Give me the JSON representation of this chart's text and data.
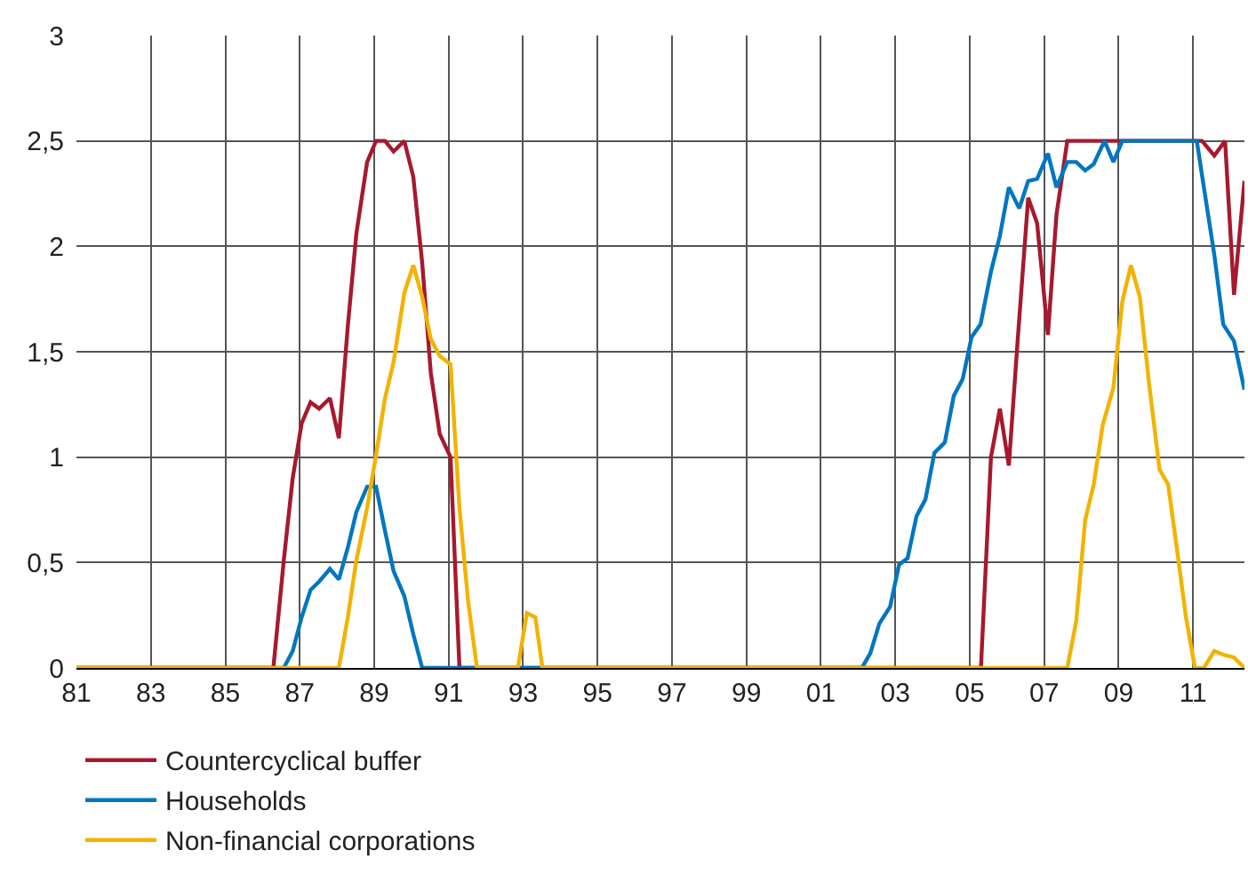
{
  "chart_data": {
    "type": "line",
    "xlim": [
      1981,
      2012.38
    ],
    "ylim": [
      0,
      3
    ],
    "xticks": [
      {
        "value": 1981,
        "label": "81"
      },
      {
        "value": 1983,
        "label": "83"
      },
      {
        "value": 1985,
        "label": "85"
      },
      {
        "value": 1987,
        "label": "87"
      },
      {
        "value": 1989,
        "label": "89"
      },
      {
        "value": 1991,
        "label": "91"
      },
      {
        "value": 1993,
        "label": "93"
      },
      {
        "value": 1995,
        "label": "95"
      },
      {
        "value": 1997,
        "label": "97"
      },
      {
        "value": 1999,
        "label": "99"
      },
      {
        "value": 2001,
        "label": "01"
      },
      {
        "value": 2003,
        "label": "03"
      },
      {
        "value": 2005,
        "label": "05"
      },
      {
        "value": 2007,
        "label": "07"
      },
      {
        "value": 2009,
        "label": "09"
      },
      {
        "value": 2011,
        "label": "11"
      }
    ],
    "yticks": [
      0,
      {
        "value": 0.5,
        "label": "0,5"
      },
      1,
      {
        "value": 1.5,
        "label": "1,5"
      },
      2,
      {
        "value": 2.5,
        "label": "2,5"
      },
      3
    ],
    "grid": true,
    "legend": "bottom",
    "marker": "none",
    "line_style": "solid",
    "series": [
      {
        "name": "Countercyclical buffer",
        "color": "#a6192e",
        "x": [
          1981,
          1986.29,
          1986.57,
          1986.81,
          1987.05,
          1987.29,
          1987.52,
          1987.81,
          1988.05,
          1988.29,
          1988.52,
          1988.81,
          1989.05,
          1989.29,
          1989.52,
          1989.81,
          1990.05,
          1990.29,
          1990.52,
          1990.76,
          1991.05,
          1991.29,
          2005.3,
          2005.57,
          2005.81,
          2006.05,
          2006.29,
          2006.57,
          2006.81,
          2007.1,
          2007.33,
          2007.62,
          2011.24,
          2011.57,
          2011.86,
          2012.1,
          2012.38
        ],
        "values": [
          0,
          0,
          0.51,
          0.9,
          1.16,
          1.26,
          1.23,
          1.28,
          1.09,
          1.62,
          2.06,
          2.4,
          2.5,
          2.5,
          2.45,
          2.5,
          2.33,
          1.92,
          1.4,
          1.11,
          1.0,
          0,
          0,
          1.0,
          1.23,
          0.96,
          1.56,
          2.23,
          2.11,
          1.58,
          2.15,
          2.5,
          2.5,
          2.43,
          2.5,
          1.77,
          2.31
        ]
      },
      {
        "name": "Households",
        "color": "#0077c0",
        "x": [
          1981,
          1986.57,
          1986.81,
          1987.05,
          1987.29,
          1987.52,
          1987.81,
          1988.05,
          1988.29,
          1988.52,
          1988.81,
          1989.05,
          1989.29,
          1989.52,
          1989.81,
          1990.05,
          1990.29,
          2002.1,
          2002.33,
          2002.57,
          2002.86,
          2003.1,
          2003.33,
          2003.57,
          2003.81,
          2004.05,
          2004.33,
          2004.57,
          2004.81,
          2005.05,
          2005.29,
          2005.57,
          2005.81,
          2006.05,
          2006.33,
          2006.57,
          2006.81,
          2007.1,
          2007.33,
          2007.62,
          2007.86,
          2008.1,
          2008.33,
          2008.62,
          2008.86,
          2009.1,
          2011.1,
          2011.29,
          2011.57,
          2011.81,
          2012.1,
          2012.38
        ],
        "values": [
          0,
          0,
          0.08,
          0.24,
          0.37,
          0.41,
          0.47,
          0.42,
          0.57,
          0.74,
          0.86,
          0.86,
          0.65,
          0.46,
          0.34,
          0.16,
          0,
          0,
          0.07,
          0.21,
          0.29,
          0.49,
          0.52,
          0.72,
          0.8,
          1.02,
          1.07,
          1.29,
          1.37,
          1.57,
          1.63,
          1.88,
          2.05,
          2.28,
          2.18,
          2.31,
          2.32,
          2.44,
          2.28,
          2.4,
          2.4,
          2.36,
          2.39,
          2.5,
          2.4,
          2.5,
          2.5,
          2.28,
          1.96,
          1.63,
          1.55,
          1.32
        ]
      },
      {
        "name": "Non-financial corporations",
        "color": "#f2b300",
        "x": [
          1981,
          1988.05,
          1988.29,
          1988.52,
          1988.81,
          1989.05,
          1989.29,
          1989.52,
          1989.81,
          1990.05,
          1990.29,
          1990.52,
          1990.76,
          1991.05,
          1991.29,
          1991.52,
          1991.76,
          1992.86,
          1993.1,
          1993.33,
          1993.52,
          2007.62,
          2007.86,
          2008.1,
          2008.33,
          2008.57,
          2008.86,
          2009.1,
          2009.33,
          2009.57,
          2009.81,
          2010.1,
          2010.33,
          2010.57,
          2010.81,
          2011.05,
          2011.29,
          2011.57,
          2011.86,
          2012.1,
          2012.38
        ],
        "values": [
          0,
          0,
          0.24,
          0.51,
          0.76,
          1.01,
          1.28,
          1.45,
          1.78,
          1.91,
          1.76,
          1.56,
          1.48,
          1.44,
          0.76,
          0.32,
          0,
          0,
          0.26,
          0.24,
          0,
          0,
          0.22,
          0.7,
          0.87,
          1.15,
          1.33,
          1.74,
          1.91,
          1.76,
          1.36,
          0.94,
          0.87,
          0.56,
          0.24,
          0,
          0,
          0.08,
          0.06,
          0.05,
          0
        ]
      }
    ]
  }
}
